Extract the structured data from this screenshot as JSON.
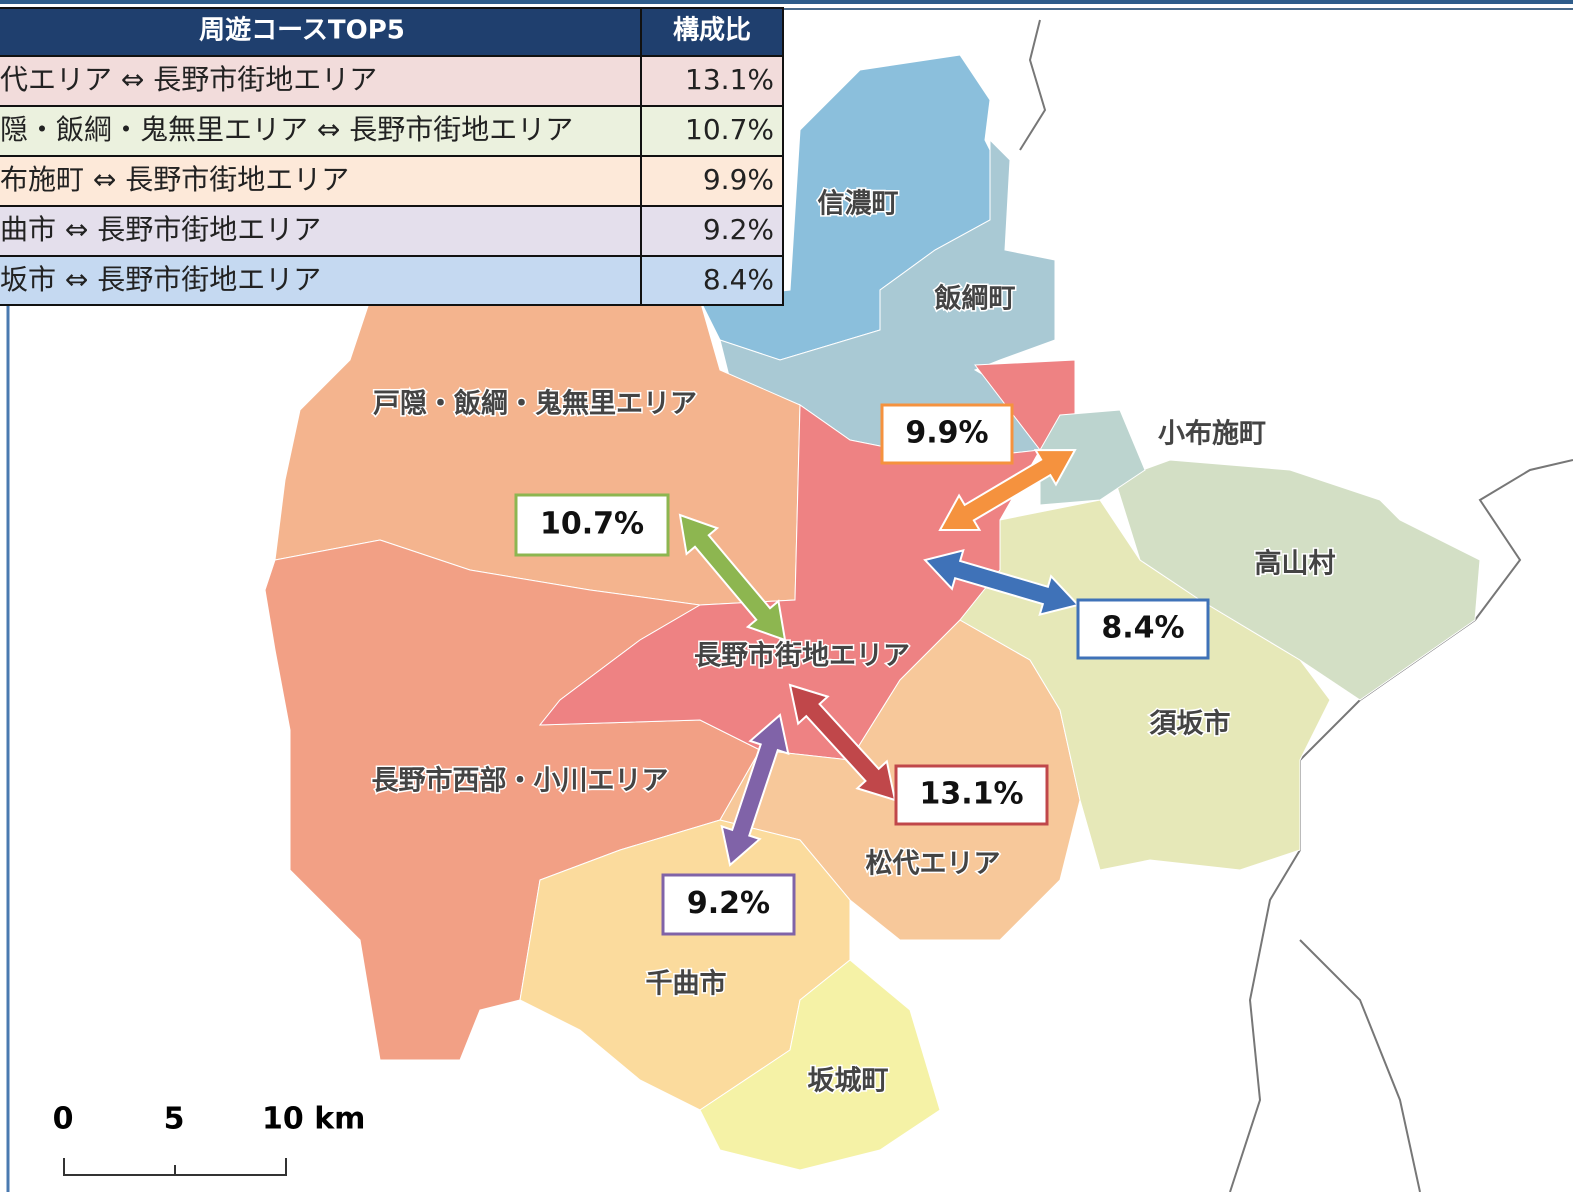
{
  "table": {
    "header": [
      "周遊コースTOP5",
      "構成比"
    ],
    "rows": [
      [
        "松代エリア ⇔ 長野市街地エリア",
        "13.1%"
      ],
      [
        "戸隠・飯綱・鬼無里エリア ⇔ 長野市街地エリア",
        "10.7%"
      ],
      [
        "小布施町 ⇔ 長野市街地エリア",
        "9.9%"
      ],
      [
        "千曲市 ⇔ 長野市街地エリア",
        "9.2%"
      ],
      [
        "須坂市 ⇔ 長野市街地エリア",
        "8.4%"
      ]
    ]
  },
  "map": {
    "areas": [
      "信濃町",
      "飯綱町",
      "戸隠・飯綱・鬼無里エリア",
      "小布施町",
      "高山村",
      "長野市街地エリア",
      "須坂市",
      "長野市西部・小川エリア",
      "松代エリア",
      "千曲市",
      "坂城町"
    ],
    "flows": [
      "9.9%",
      "10.7%",
      "8.4%",
      "13.1%",
      "9.2%"
    ],
    "scale": [
      "0",
      "5",
      "10 km"
    ]
  }
}
